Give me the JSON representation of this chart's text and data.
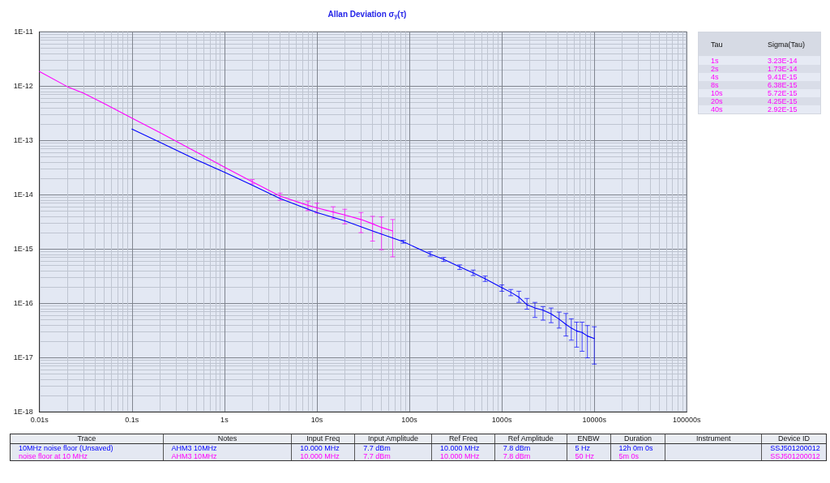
{
  "chart_data": [
    {
      "type": "line",
      "title": "Allan Deviation σ$_{y}$(τ)",
      "series": [
        {
          "color": "#0000ff",
          "x": [
            0.1,
            0.2,
            0.5,
            1,
            2,
            4,
            10,
            20,
            40,
            86,
            168,
            235,
            350,
            490,
            660,
            1000,
            1250,
            1530,
            1870,
            2280,
            2790,
            3410,
            4170,
            4930,
            5640,
            6440,
            7380,
            8420,
            10000
          ],
          "values": [
            1.62e-13,
            9.3e-14,
            4.4e-14,
            2.6e-14,
            1.5e-14,
            8.5e-15,
            4.7e-15,
            3.3e-15,
            2.15e-15,
            1.36e-15,
            8.1e-16,
            6.46e-16,
            4.7e-16,
            3.64e-16,
            2.83e-16,
            1.94e-16,
            1.6e-16,
            1.3e-16,
            9.4e-17,
            8.2e-17,
            7.5e-17,
            6.4e-17,
            5.1e-17,
            4.1e-17,
            3.5e-17,
            3.1e-17,
            2.9e-17,
            2.5e-17,
            2.25e-17
          ],
          "errors": [
            null,
            null,
            null,
            null,
            null,
            null,
            null,
            null,
            null,
            [
              1.28e-15,
              1.45e-15
            ],
            [
              7.4e-16,
              8.9e-16
            ],
            [
              5.9e-16,
              7e-16
            ],
            [
              4.2e-16,
              5.1e-16
            ],
            [
              3.25e-16,
              4.1e-16
            ],
            [
              2.53e-16,
              3.18e-16
            ],
            [
              1.67e-16,
              2.18e-16
            ],
            [
              1.38e-16,
              1.8e-16
            ],
            [
              1.04e-16,
              1.67e-16
            ],
            [
              7.8e-17,
              1.23e-16
            ],
            [
              5.5e-17,
              1.04e-16
            ],
            [
              4.9e-17,
              8.7e-17
            ],
            [
              4.4e-17,
              8.2e-17
            ],
            [
              3.5e-17,
              6.9e-17
            ],
            [
              2.5e-17,
              6.5e-17
            ],
            [
              2.1e-17,
              5.2e-17
            ],
            [
              1.56e-17,
              4.5e-17
            ],
            [
              1.31e-17,
              4.5e-17
            ],
            [
              9.9e-18,
              3.9e-17
            ],
            [
              7.6e-18,
              3.7e-17
            ]
          ]
        },
        {
          "color": "#ff00ff",
          "x": [
            0.01,
            0.02,
            0.03,
            0.05,
            0.1,
            0.2,
            0.5,
            1,
            2,
            4,
            8,
            10,
            15,
            20,
            30,
            40,
            50,
            66
          ],
          "values": [
            1.86e-12,
            9.8e-13,
            7.4e-13,
            4.8e-13,
            2.58e-13,
            1.4e-13,
            6.1e-14,
            3.23e-14,
            1.73e-14,
            9.41e-15,
            6.38e-15,
            5.72e-15,
            4.8e-15,
            4.25e-15,
            3.5e-15,
            2.92e-15,
            2.5e-15,
            2.15e-15
          ],
          "errors": [
            null,
            null,
            null,
            null,
            null,
            null,
            null,
            null,
            [
              1.58e-14,
              1.9e-14
            ],
            [
              7.9e-15,
              1.07e-14
            ],
            [
              5.1e-15,
              7.6e-15
            ],
            [
              4.6e-15,
              7e-15
            ],
            [
              3.6e-15,
              6e-15
            ],
            [
              2.9e-15,
              5.4e-15
            ],
            [
              2e-15,
              4.7e-15
            ],
            [
              1.4e-15,
              4e-15
            ],
            [
              9.7e-16,
              3.9e-15
            ],
            [
              7.2e-16,
              3.5e-15
            ]
          ]
        }
      ],
      "xlim": [
        0.01,
        100000
      ],
      "xticks": [
        {
          "value": 0.01,
          "label": "0.01s"
        },
        {
          "value": 0.02,
          "label": null
        },
        {
          "value": 0.03,
          "label": null
        },
        {
          "value": 0.04,
          "label": null
        },
        {
          "value": 0.05,
          "label": null
        },
        {
          "value": 0.06,
          "label": null
        },
        {
          "value": 0.07,
          "label": null
        },
        {
          "value": 0.08,
          "label": null
        },
        {
          "value": 0.09,
          "label": null
        },
        {
          "value": 0.1,
          "label": "0.1s"
        },
        {
          "value": 0.2,
          "label": null
        },
        {
          "value": 0.3,
          "label": null
        },
        {
          "value": 0.4,
          "label": null
        },
        {
          "value": 0.5,
          "label": null
        },
        {
          "value": 0.6,
          "label": null
        },
        {
          "value": 0.7,
          "label": null
        },
        {
          "value": 0.8,
          "label": null
        },
        {
          "value": 0.9,
          "label": null
        },
        {
          "value": 1,
          "label": "1s"
        },
        {
          "value": 2,
          "label": null
        },
        {
          "value": 3,
          "label": null
        },
        {
          "value": 4,
          "label": null
        },
        {
          "value": 5,
          "label": null
        },
        {
          "value": 6,
          "label": null
        },
        {
          "value": 7,
          "label": null
        },
        {
          "value": 8,
          "label": null
        },
        {
          "value": 9,
          "label": null
        },
        {
          "value": 10,
          "label": "10s"
        },
        {
          "value": 20,
          "label": null
        },
        {
          "value": 30,
          "label": null
        },
        {
          "value": 40,
          "label": null
        },
        {
          "value": 50,
          "label": null
        },
        {
          "value": 60,
          "label": null
        },
        {
          "value": 70,
          "label": null
        },
        {
          "value": 80,
          "label": null
        },
        {
          "value": 90,
          "label": null
        },
        {
          "value": 100,
          "label": "100s"
        },
        {
          "value": 200,
          "label": null
        },
        {
          "value": 300,
          "label": null
        },
        {
          "value": 400,
          "label": null
        },
        {
          "value": 500,
          "label": null
        },
        {
          "value": 600,
          "label": null
        },
        {
          "value": 700,
          "label": null
        },
        {
          "value": 800,
          "label": null
        },
        {
          "value": 900,
          "label": null
        },
        {
          "value": 1000,
          "label": "1000s"
        },
        {
          "value": 2000,
          "label": null
        },
        {
          "value": 3000,
          "label": null
        },
        {
          "value": 4000,
          "label": null
        },
        {
          "value": 5000,
          "label": null
        },
        {
          "value": 6000,
          "label": null
        },
        {
          "value": 7000,
          "label": null
        },
        {
          "value": 8000,
          "label": null
        },
        {
          "value": 9000,
          "label": null
        },
        {
          "value": 10000,
          "label": "10000s"
        },
        {
          "value": 20000,
          "label": null
        },
        {
          "value": 30000,
          "label": null
        },
        {
          "value": 40000,
          "label": null
        },
        {
          "value": 50000,
          "label": null
        },
        {
          "value": 60000,
          "label": null
        },
        {
          "value": 70000,
          "label": null
        },
        {
          "value": 80000,
          "label": null
        },
        {
          "value": 90000,
          "label": null
        },
        {
          "value": 100000,
          "label": "100000s"
        }
      ],
      "ylim": [
        1e-18,
        1e-11
      ],
      "yticks": [
        {
          "value": 1e-18,
          "label": "1E-18"
        },
        {
          "value": 2e-18,
          "label": null
        },
        {
          "value": 3e-18,
          "label": null
        },
        {
          "value": 4e-18,
          "label": null
        },
        {
          "value": 5e-18,
          "label": null
        },
        {
          "value": 6e-18,
          "label": null
        },
        {
          "value": 7e-18,
          "label": null
        },
        {
          "value": 8e-18,
          "label": null
        },
        {
          "value": 9e-18,
          "label": null
        },
        {
          "value": 1e-17,
          "label": "1E-17"
        },
        {
          "value": 2e-17,
          "label": null
        },
        {
          "value": 3e-17,
          "label": null
        },
        {
          "value": 4e-17,
          "label": null
        },
        {
          "value": 5e-17,
          "label": null
        },
        {
          "value": 6e-17,
          "label": null
        },
        {
          "value": 7e-17,
          "label": null
        },
        {
          "value": 8e-17,
          "label": null
        },
        {
          "value": 9e-17,
          "label": null
        },
        {
          "value": 1e-16,
          "label": "1E-16"
        },
        {
          "value": 2e-16,
          "label": null
        },
        {
          "value": 3e-16,
          "label": null
        },
        {
          "value": 4e-16,
          "label": null
        },
        {
          "value": 5e-16,
          "label": null
        },
        {
          "value": 6e-16,
          "label": null
        },
        {
          "value": 7e-16,
          "label": null
        },
        {
          "value": 8e-16,
          "label": null
        },
        {
          "value": 9e-16,
          "label": null
        },
        {
          "value": 1e-15,
          "label": "1E-15"
        },
        {
          "value": 2e-15,
          "label": null
        },
        {
          "value": 3e-15,
          "label": null
        },
        {
          "value": 4e-15,
          "label": null
        },
        {
          "value": 5e-15,
          "label": null
        },
        {
          "value": 6e-15,
          "label": null
        },
        {
          "value": 7e-15,
          "label": null
        },
        {
          "value": 8e-15,
          "label": null
        },
        {
          "value": 9e-15,
          "label": null
        },
        {
          "value": 1e-14,
          "label": "1E-14"
        },
        {
          "value": 2e-14,
          "label": null
        },
        {
          "value": 3e-14,
          "label": null
        },
        {
          "value": 4e-14,
          "label": null
        },
        {
          "value": 5e-14,
          "label": null
        },
        {
          "value": 6e-14,
          "label": null
        },
        {
          "value": 7e-14,
          "label": null
        },
        {
          "value": 8e-14,
          "label": null
        },
        {
          "value": 9e-14,
          "label": null
        },
        {
          "value": 1e-13,
          "label": "1E-13"
        },
        {
          "value": 2e-13,
          "label": null
        },
        {
          "value": 3e-13,
          "label": null
        },
        {
          "value": 4e-13,
          "label": null
        },
        {
          "value": 5e-13,
          "label": null
        },
        {
          "value": 6e-13,
          "label": null
        },
        {
          "value": 7e-13,
          "label": null
        },
        {
          "value": 8e-13,
          "label": null
        },
        {
          "value": 9e-13,
          "label": null
        },
        {
          "value": 1e-12,
          "label": "1E-12"
        },
        {
          "value": 2e-12,
          "label": null
        },
        {
          "value": 3e-12,
          "label": null
        },
        {
          "value": 4e-12,
          "label": null
        },
        {
          "value": 5e-12,
          "label": null
        },
        {
          "value": 6e-12,
          "label": null
        },
        {
          "value": 7e-12,
          "label": null
        },
        {
          "value": 8e-12,
          "label": null
        },
        {
          "value": 9e-12,
          "label": null
        },
        {
          "value": 1e-11,
          "label": "1E-11"
        }
      ],
      "log": "xy",
      "grid": true,
      "marker": "none"
    },
    {
      "type": "other",
      "categories": [
        "1s",
        "2s",
        "4s",
        "8s",
        "10s",
        "20s",
        "40s"
      ],
      "color": "#ff00ff",
      "annotations": [
        "Tau",
        "Sigma(Tau)",
        "3.23E-14",
        "1.73E-14",
        "9.41E-15",
        "6.38E-15",
        "5.72E-15",
        "4.25E-15",
        "2.92E-15"
      ]
    },
    {
      "type": "other",
      "categories": [
        "10MHz noise floor (Unsaved)",
        "noise floor at 10 MHz"
      ],
      "annotations": [
        "Trace",
        "Notes",
        "Input Freq",
        "Input Amplitude",
        "Ref Freq",
        "Ref Amplitude",
        "ENBW",
        "Duration",
        "Instrument",
        "Device ID",
        "AHM3 10MHz",
        "10.000 MHz",
        "7.7 dBm",
        "10.000 MHz",
        "7.8 dBm",
        "5 Hz",
        "12h 0m 0s",
        null,
        "SSJ501200012",
        "AHM3 10MHz",
        "10.000 MHz",
        "7.7 dBm",
        "10.000 MHz",
        "7.8 dBm",
        "50 Hz",
        "5m 0s",
        null,
        "SSJ501200012"
      ]
    }
  ]
}
